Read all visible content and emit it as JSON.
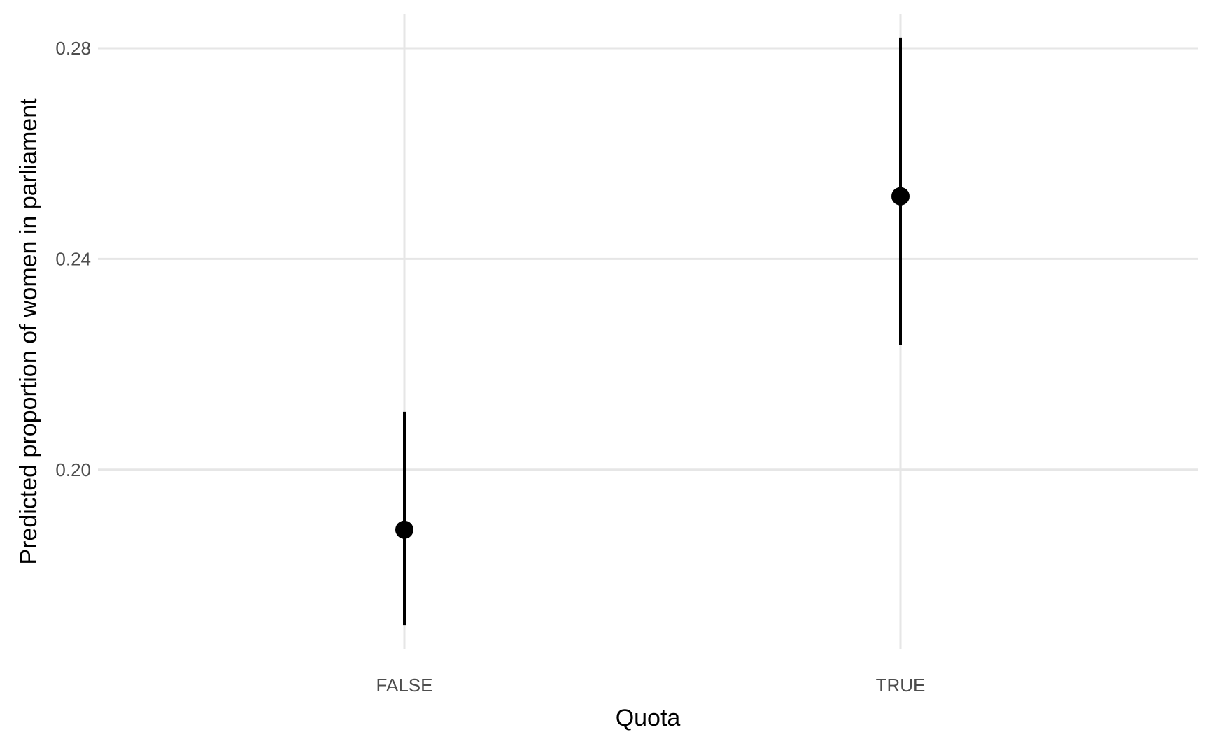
{
  "chart_data": {
    "type": "pointrange",
    "categories": [
      "FALSE",
      "TRUE"
    ],
    "series": [
      {
        "estimates": [
          0.1886,
          0.2519
        ],
        "lower": [
          0.1705,
          0.2237
        ],
        "upper": [
          0.211,
          0.282
        ]
      }
    ],
    "xlabel": "Quota",
    "ylabel": "Predicted proportion of women in parliament",
    "yticks": [
      0.2,
      0.24,
      0.28
    ],
    "ytick_labels": [
      "0.20",
      "0.24",
      "0.28"
    ],
    "ylim": [
      0.166,
      0.2865
    ],
    "grid": true,
    "colors": {
      "grid": "#e6e6e6",
      "marks": "#000000",
      "tick_text": "#4d4d4d"
    }
  }
}
